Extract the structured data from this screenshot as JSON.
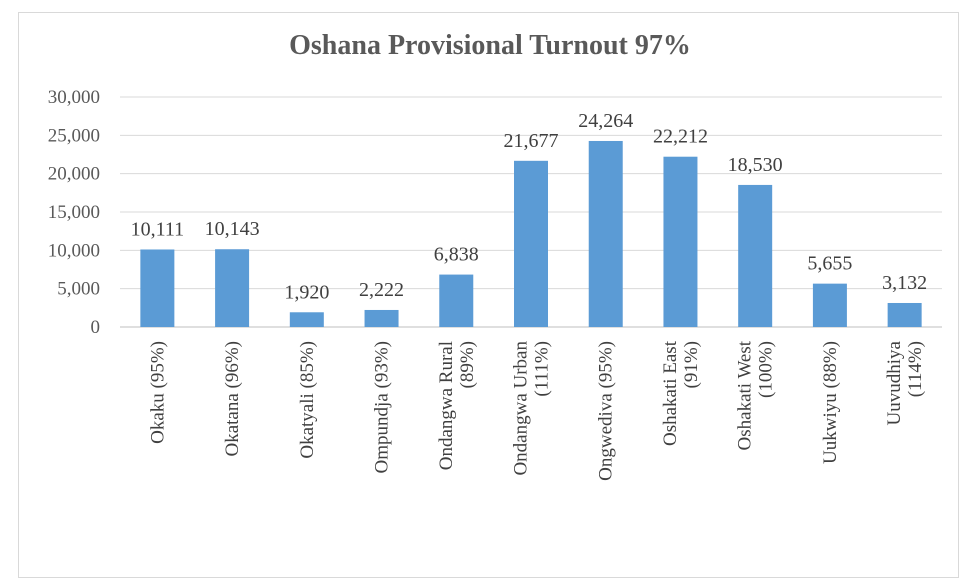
{
  "chart_data": {
    "type": "bar",
    "title": "Oshana Provisional Turnout 97%",
    "categories": [
      [
        "Okaku (95%)"
      ],
      [
        "Okatana (96%)"
      ],
      [
        "Okatyali (85%)"
      ],
      [
        "Ompundja (93%)"
      ],
      [
        "Ondangwa Rural",
        "(89%)"
      ],
      [
        "Ondangwa Urban",
        "(111%)"
      ],
      [
        "Ongwediva (95%)"
      ],
      [
        "Oshakati East",
        "(91%)"
      ],
      [
        "Oshakati West",
        "(100%)"
      ],
      [
        "Uukwiyu (88%)"
      ],
      [
        "Uuvudhiya",
        "(114%)"
      ]
    ],
    "values": [
      10111,
      10143,
      1920,
      2222,
      6838,
      21677,
      24264,
      22212,
      18530,
      5655,
      3132
    ],
    "data_labels": [
      "10,111",
      "10,143",
      "1,920",
      "2,222",
      "6,838",
      "21,677",
      "24,264",
      "22,212",
      "18,530",
      "5,655",
      "3,132"
    ],
    "ylim": [
      0,
      30000
    ],
    "yticks": [
      0,
      5000,
      10000,
      15000,
      20000,
      25000,
      30000
    ],
    "ytick_labels": [
      "0",
      "5,000",
      "10,000",
      "15,000",
      "20,000",
      "25,000",
      "30,000"
    ],
    "grid": true,
    "bar_color": "#5b9bd5",
    "grid_color": "#d9d9d9"
  }
}
